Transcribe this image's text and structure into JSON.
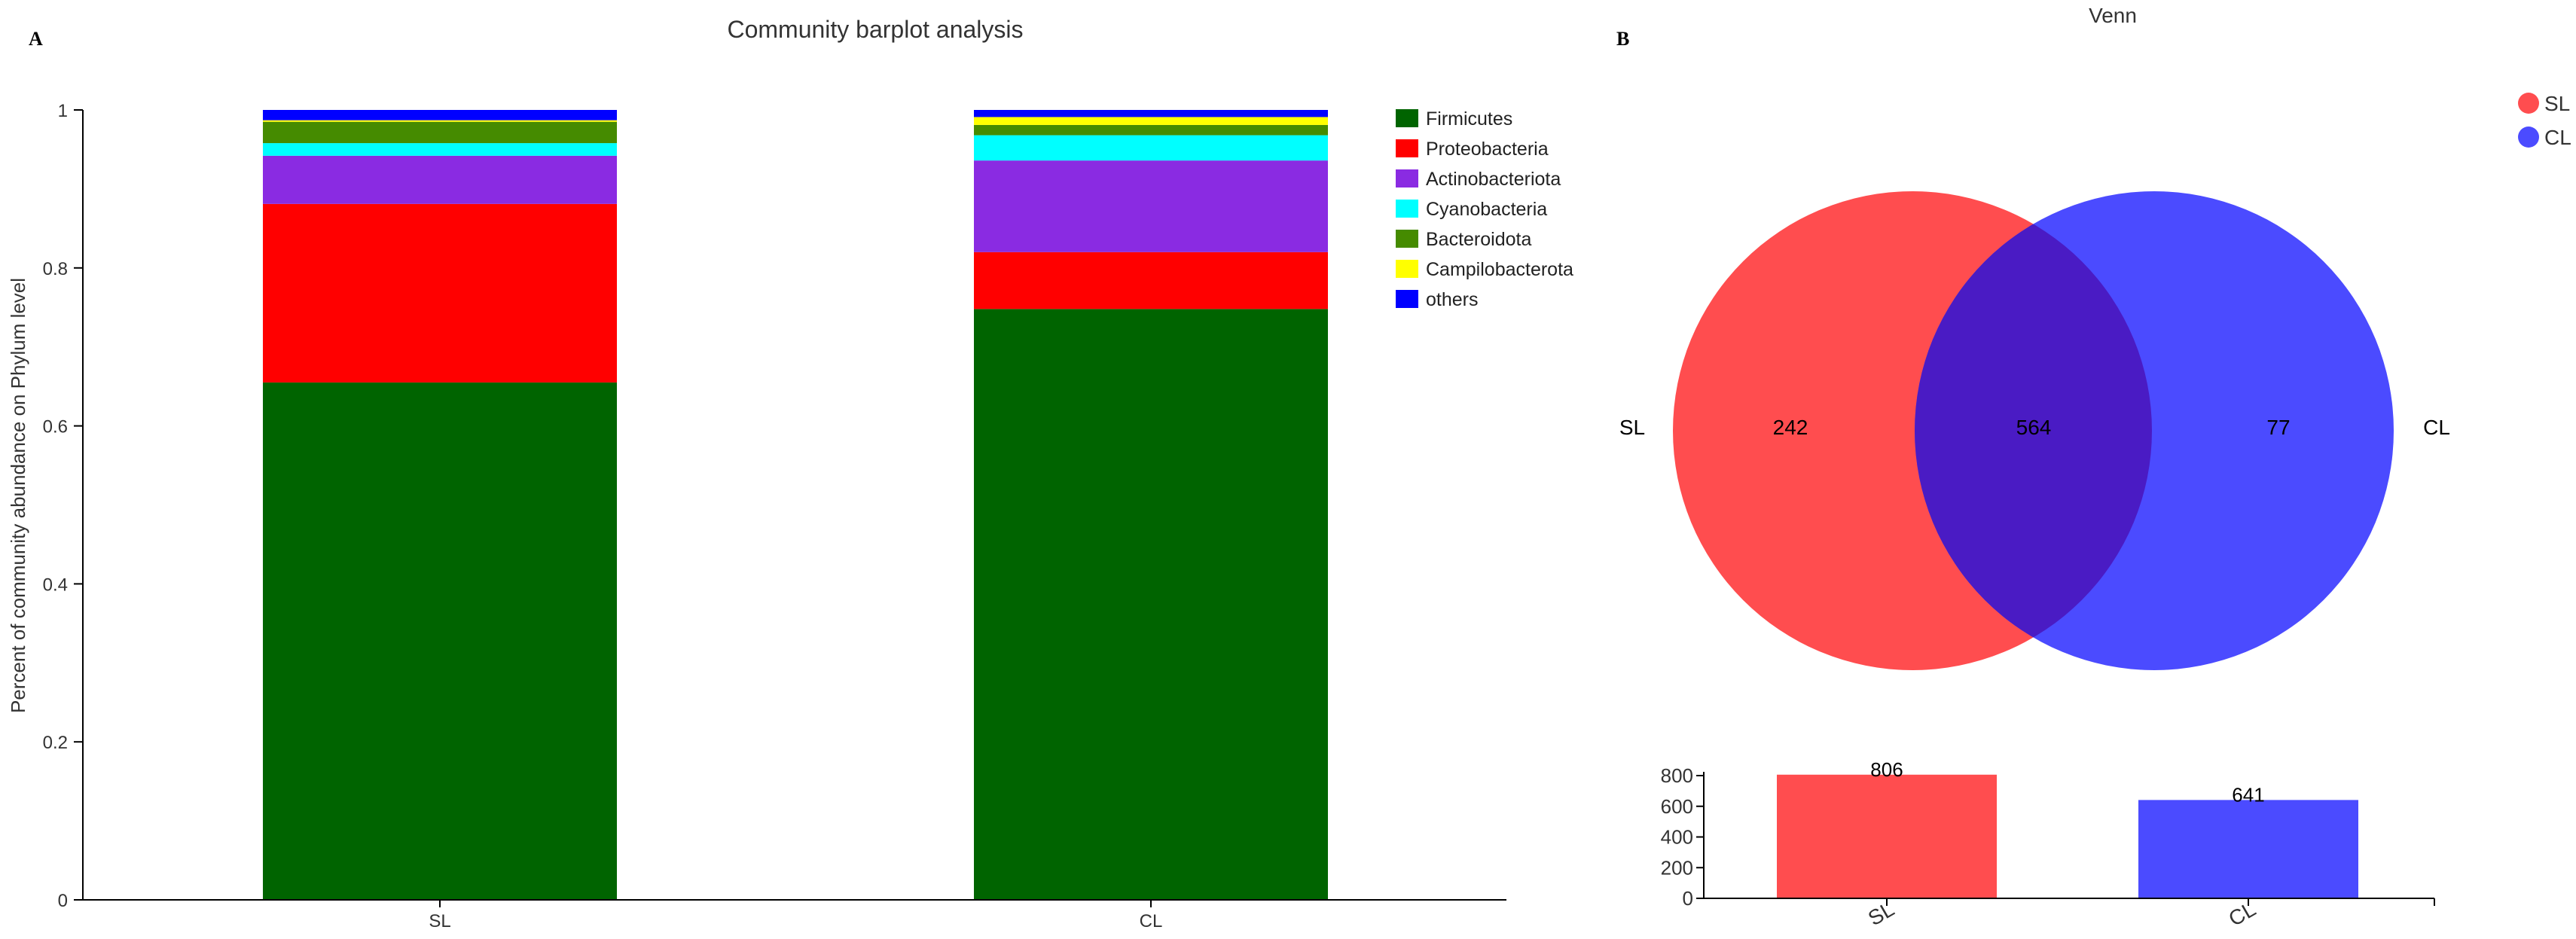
{
  "panels": {
    "a_label": "A",
    "b_label": "B"
  },
  "chart_data": [
    {
      "type": "bar",
      "stacked": true,
      "title": "Community barplot analysis",
      "xlabel": "",
      "ylabel": "Percent of community abundance on Phylum level",
      "ylim": [
        0,
        1
      ],
      "yticks": [
        "0",
        "0.2",
        "0.4",
        "0.6",
        "0.8",
        "1"
      ],
      "categories": [
        "SL",
        "CL"
      ],
      "legend_position": "top-right",
      "series": [
        {
          "name": "Firmicutes",
          "color": "#006400",
          "values": [
            0.655,
            0.748
          ]
        },
        {
          "name": "Proteobacteria",
          "color": "#ff0000",
          "values": [
            0.226,
            0.072
          ]
        },
        {
          "name": "Actinobacteriota",
          "color": "#8a2be2",
          "values": [
            0.061,
            0.116
          ]
        },
        {
          "name": "Cyanobacteria",
          "color": "#00ffff",
          "values": [
            0.016,
            0.032
          ]
        },
        {
          "name": "Bacteroidota",
          "color": "#458b00",
          "values": [
            0.027,
            0.013
          ]
        },
        {
          "name": "Campilobacterota",
          "color": "#ffff00",
          "values": [
            0.002,
            0.01
          ]
        },
        {
          "name": "others",
          "color": "#0000ff",
          "values": [
            0.013,
            0.009
          ]
        }
      ]
    },
    {
      "type": "venn",
      "title": "Venn",
      "legend_position": "top-right",
      "sets": [
        {
          "name": "SL",
          "color": "#ff4d4f",
          "unique": "242"
        },
        {
          "name": "CL",
          "color": "#4b4bff",
          "unique": "77"
        }
      ],
      "intersection": "564",
      "intersection_color": "#4a1bc4"
    },
    {
      "type": "bar",
      "title": "",
      "xlabel": "",
      "ylabel": "",
      "ylim": [
        0,
        800
      ],
      "yticks": [
        "0",
        "200",
        "400",
        "600",
        "800"
      ],
      "categories": [
        "SL",
        "CL"
      ],
      "values": [
        806,
        641
      ],
      "value_labels": [
        "806",
        "641"
      ],
      "colors": [
        "#ff4d4f",
        "#4b4bff"
      ]
    }
  ]
}
